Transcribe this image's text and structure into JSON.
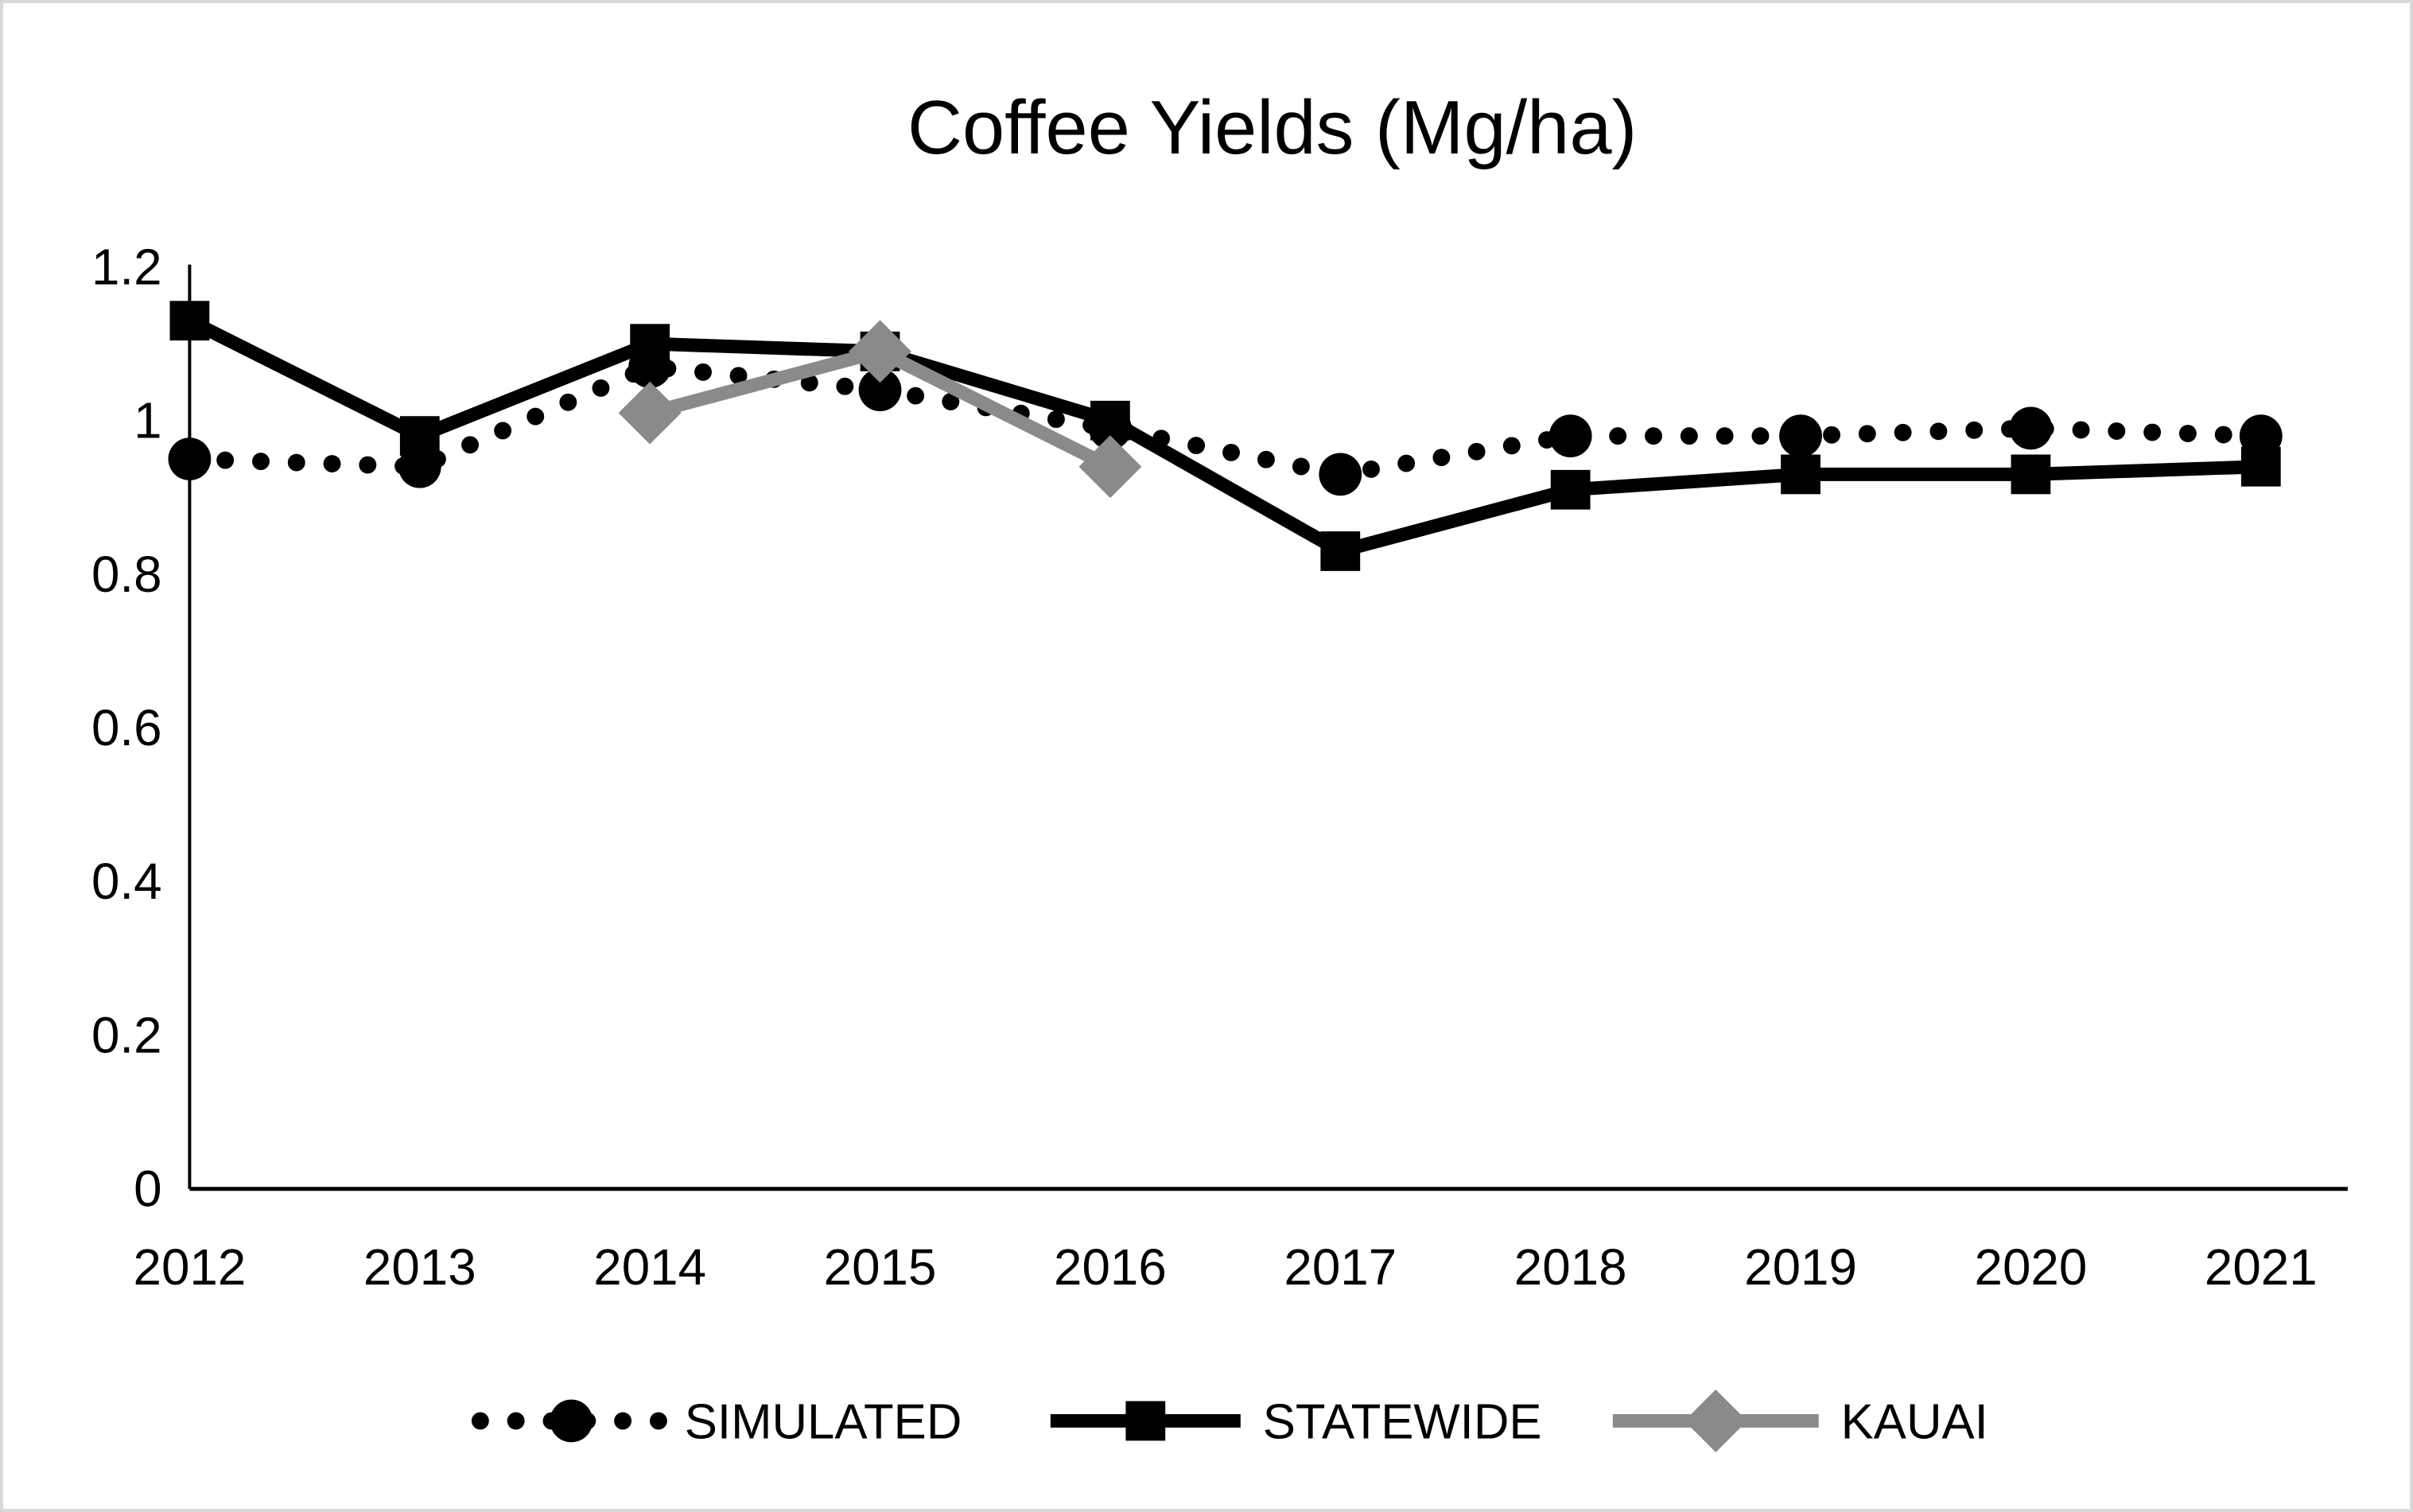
{
  "title": "Coffee Yields (Mg/ha)",
  "colors": {
    "black_series": "#000000",
    "kauai_gray": "#8a8a8a",
    "axis": "#000000",
    "figure_border": "#d9d9d9",
    "background": "#ffffff"
  },
  "chart_data": {
    "type": "line",
    "title": "Coffee Yields (Mg/ha)",
    "x": [
      2012,
      2013,
      2014,
      2015,
      2016,
      2017,
      2018,
      2019,
      2020,
      2021
    ],
    "xtick_labels": [
      "2012",
      "2013",
      "2014",
      "2015",
      "2016",
      "2017",
      "2018",
      "2019",
      "2020",
      "2021"
    ],
    "series": [
      {
        "name": "SIMULATED",
        "line_style": "dotted",
        "marker": "circle",
        "color": "#000000",
        "values": [
          0.95,
          0.94,
          1.07,
          1.04,
          0.99,
          0.93,
          0.98,
          0.98,
          0.99,
          0.98
        ]
      },
      {
        "name": "STATEWIDE",
        "line_style": "solid",
        "marker": "square",
        "color": "#000000",
        "values": [
          1.13,
          0.98,
          1.1,
          1.09,
          1.0,
          0.83,
          0.91,
          0.93,
          0.93,
          0.94
        ]
      },
      {
        "name": "KAUAI",
        "line_style": "solid",
        "marker": "diamond",
        "color": "#8a8a8a",
        "values": [
          null,
          null,
          1.01,
          1.09,
          0.94,
          null,
          null,
          null,
          null,
          null
        ]
      }
    ],
    "ylim": [
      0,
      1.2
    ],
    "yticks": [
      0,
      0.2,
      0.4,
      0.6,
      0.8,
      1,
      1.2
    ],
    "ytick_labels": [
      "0",
      "0.2",
      "0.4",
      "0.6",
      "0.8",
      "1",
      "1.2"
    ],
    "grid": false,
    "legend_position": "bottom"
  }
}
